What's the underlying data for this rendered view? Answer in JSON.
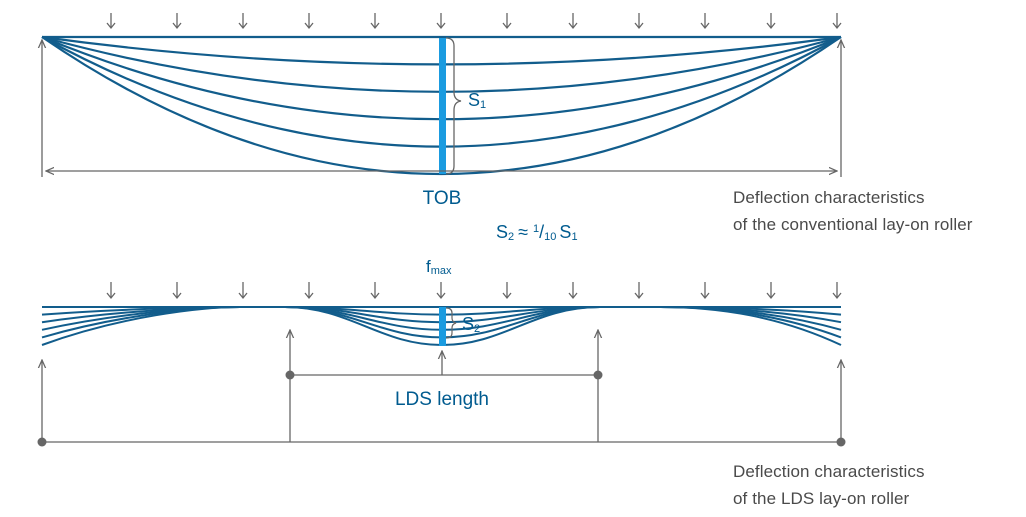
{
  "colors": {
    "curve": "#125d8c",
    "highlight": "#1a9be0",
    "arrow": "#666666",
    "label_blue": "#005b8f",
    "text_grey": "#4a4a4a"
  },
  "top_diagram": {
    "label_tob": "TOB",
    "label_s1": "S",
    "label_s1_sub": "1",
    "load_arrow_count": 12,
    "curve_count": 6
  },
  "relation": {
    "s2": "S",
    "s2_sub": "2",
    "approx": "≈",
    "frac_num": "1",
    "frac_den": "10",
    "s1": "S",
    "s1_sub": "1"
  },
  "bottom_diagram": {
    "label_fmax": "f",
    "label_fmax_sub": "max",
    "label_s2": "S",
    "label_s2_sub": "2",
    "label_lds_length": "LDS length",
    "load_arrow_count": 12,
    "curve_count": 6
  },
  "captions": {
    "conventional_line1": "Deflection characteristics",
    "conventional_line2": "of the conventional lay-on roller",
    "lds_line1": "Deflection characteristics",
    "lds_line2": "of the LDS lay-on roller"
  }
}
